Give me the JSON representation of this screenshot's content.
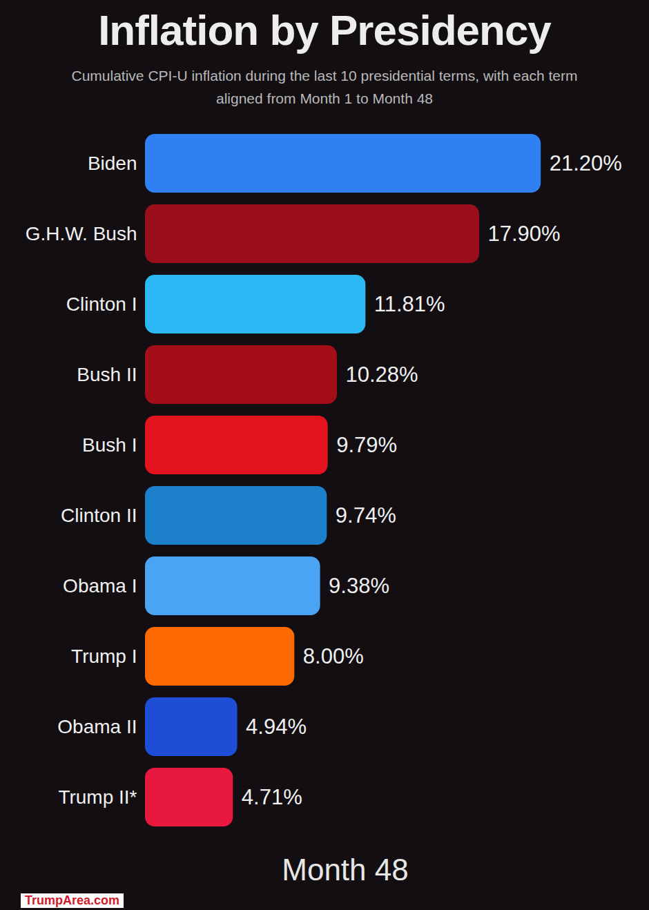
{
  "chart_data": {
    "type": "bar",
    "title": "Inflation by Presidency",
    "subtitle": "Cumulative CPI-U inflation during the last 10 presidential terms, with each term aligned from Month 1 to Month 48",
    "categories": [
      "Biden",
      "G.H.W. Bush",
      "Clinton I",
      "Bush II",
      "Bush I",
      "Clinton II",
      "Obama I",
      "Trump I",
      "Obama II",
      "Trump II*"
    ],
    "values": [
      21.2,
      17.9,
      11.81,
      10.28,
      9.79,
      9.74,
      9.38,
      8.0,
      4.94,
      4.71
    ],
    "value_labels": [
      "21.20%",
      "17.90%",
      "11.81%",
      "10.28%",
      "9.79%",
      "9.74%",
      "9.38%",
      "8.00%",
      "4.94%",
      "4.71%"
    ],
    "colors": [
      "#2f80f2",
      "#9b0f1c",
      "#2bb8f4",
      "#a40e18",
      "#e2121f",
      "#1b7fca",
      "#4aa4f4",
      "#ff6a00",
      "#1f4ed6",
      "#e8183f"
    ],
    "orientation": "horizontal",
    "data_labels": true,
    "tick_labels": "y",
    "xlim": [
      0,
      27
    ],
    "annotations": [
      "Month 48"
    ],
    "caption": "TrumpArea.com"
  }
}
